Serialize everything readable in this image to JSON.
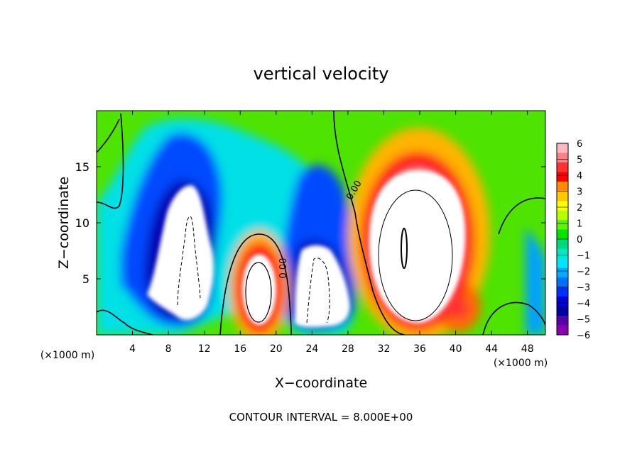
{
  "chart_data": {
    "type": "heatmap",
    "title": "vertical velocity",
    "xlabel": "X−coordinate",
    "ylabel": "Z−coordinate",
    "x_unit": "(×1000 m)",
    "x_range": [
      0,
      50
    ],
    "y_range": [
      0,
      20
    ],
    "x_ticks": [
      4,
      8,
      12,
      16,
      20,
      24,
      28,
      32,
      36,
      40,
      44,
      48
    ],
    "y_ticks": [
      5,
      10,
      15
    ],
    "contour_interval_text": "CONTOUR INTERVAL = 8.000E+00",
    "contour_label": "0.00",
    "colorbar": {
      "range": [
        -6,
        6
      ],
      "ticks": [
        "6",
        "5",
        "4",
        "3",
        "2",
        "1",
        "0",
        "−1",
        "−2",
        "−3",
        "−4",
        "−5",
        "−6"
      ],
      "colors": [
        "#ffb6bd",
        "#ff7f86",
        "#ff3030",
        "#ff0000",
        "#ff8c00",
        "#ffc800",
        "#ffff00",
        "#b4ff00",
        "#5cf700",
        "#00e600",
        "#00d97a",
        "#00e8c8",
        "#00e6ff",
        "#00aaff",
        "#0070ff",
        "#0030ff",
        "#0000d8",
        "#0000a0",
        "#5a00a8",
        "#8a00b0"
      ]
    },
    "features": [
      {
        "name": "updraft core A",
        "x": 18.2,
        "z": 4.3,
        "peak": "> 6"
      },
      {
        "name": "updraft core B",
        "x": 35.3,
        "z": 8.5,
        "peak": "> 6"
      },
      {
        "name": "downdraft core A",
        "x": 10,
        "z": 7,
        "peak": "< −6"
      },
      {
        "name": "downdraft core B",
        "x": 25,
        "z": 4.5,
        "peak": "< −6"
      }
    ]
  }
}
